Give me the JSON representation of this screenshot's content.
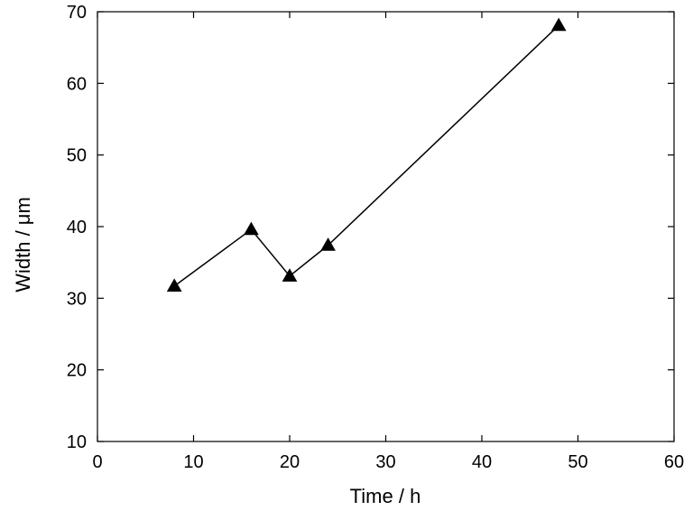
{
  "chart_data": {
    "type": "line",
    "title": "",
    "xlabel": "Time / h",
    "ylabel": "Width / μm",
    "xlim": [
      0,
      60
    ],
    "ylim": [
      10,
      70
    ],
    "xticks": [
      0,
      10,
      20,
      30,
      40,
      50,
      60
    ],
    "yticks": [
      10,
      20,
      30,
      40,
      50,
      60,
      70
    ],
    "grid": false,
    "marker": "triangle",
    "color": "#000000",
    "series": [
      {
        "x": [
          8,
          16,
          20,
          24,
          48
        ],
        "y": [
          31.7,
          39.6,
          33.1,
          37.4,
          68.1
        ]
      }
    ]
  }
}
